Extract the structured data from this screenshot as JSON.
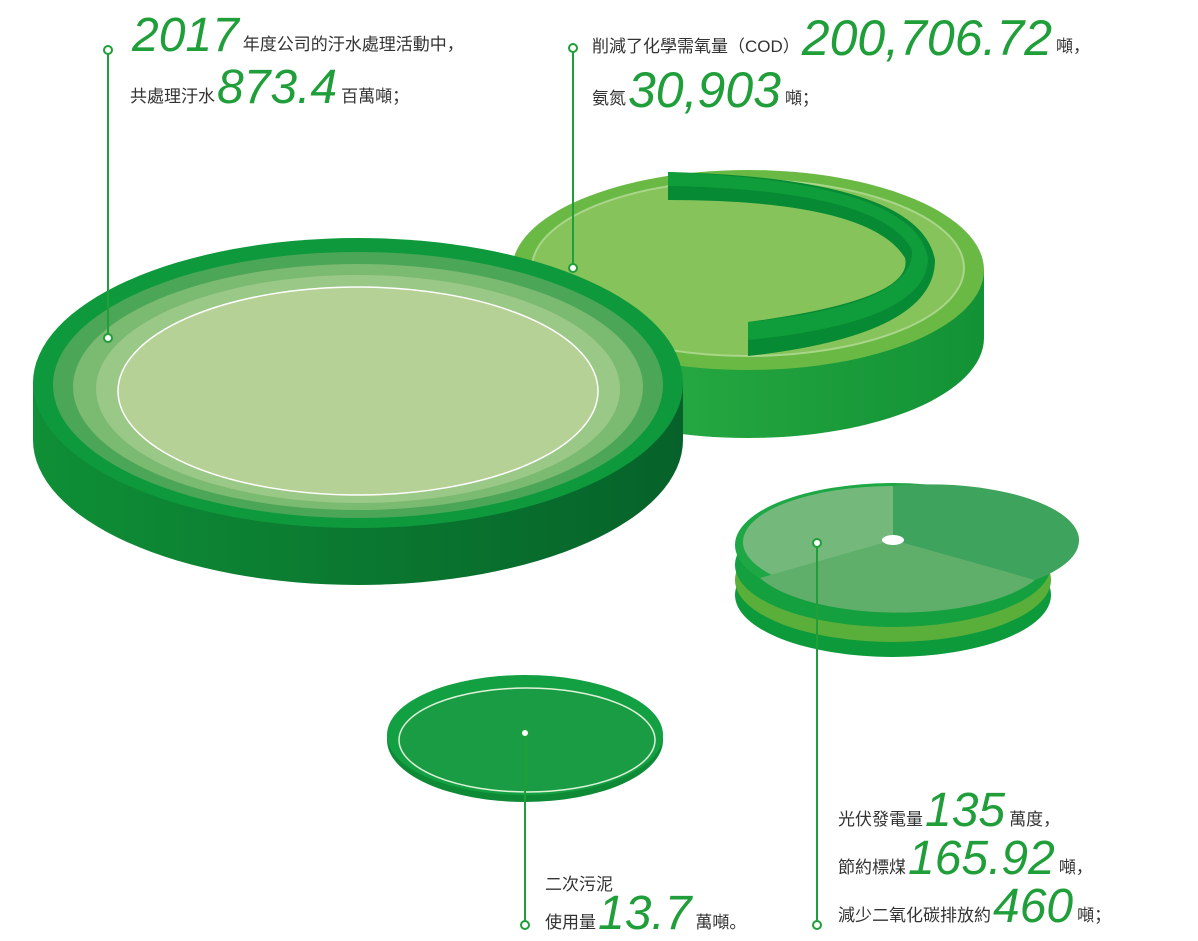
{
  "callouts": [
    {
      "lines": [
        [
          {
            "figure": "2017"
          },
          {
            "text": "年度公司的汙水處理活動中，"
          }
        ],
        [
          {
            "text": "共處理汙水"
          },
          {
            "figure": "873.4"
          },
          {
            "text": "百萬噸；"
          }
        ]
      ]
    },
    {
      "lines": [
        [
          {
            "text": "削減了化學需氧量（COD）"
          },
          {
            "figure": "200,706.72"
          },
          {
            "text": "噸，"
          }
        ],
        [
          {
            "text": "氨氮"
          },
          {
            "figure": "30,903"
          },
          {
            "text": "噸；"
          }
        ]
      ]
    },
    {
      "lines": [
        [
          {
            "text": "二次污泥"
          }
        ],
        [
          {
            "text": "使用量"
          },
          {
            "figure": "13.7"
          },
          {
            "text": "萬噸。"
          }
        ]
      ]
    },
    {
      "lines": [
        [
          {
            "text": "光伏發電量"
          },
          {
            "figure": "135"
          },
          {
            "text": "萬度，"
          }
        ],
        [
          {
            "text": "節約標煤"
          },
          {
            "figure": "165.92"
          },
          {
            "text": "噸，"
          }
        ],
        [
          {
            "text": "減少二氧化碳排放約"
          },
          {
            "figure": "460"
          },
          {
            "text": "噸；"
          }
        ]
      ]
    }
  ]
}
